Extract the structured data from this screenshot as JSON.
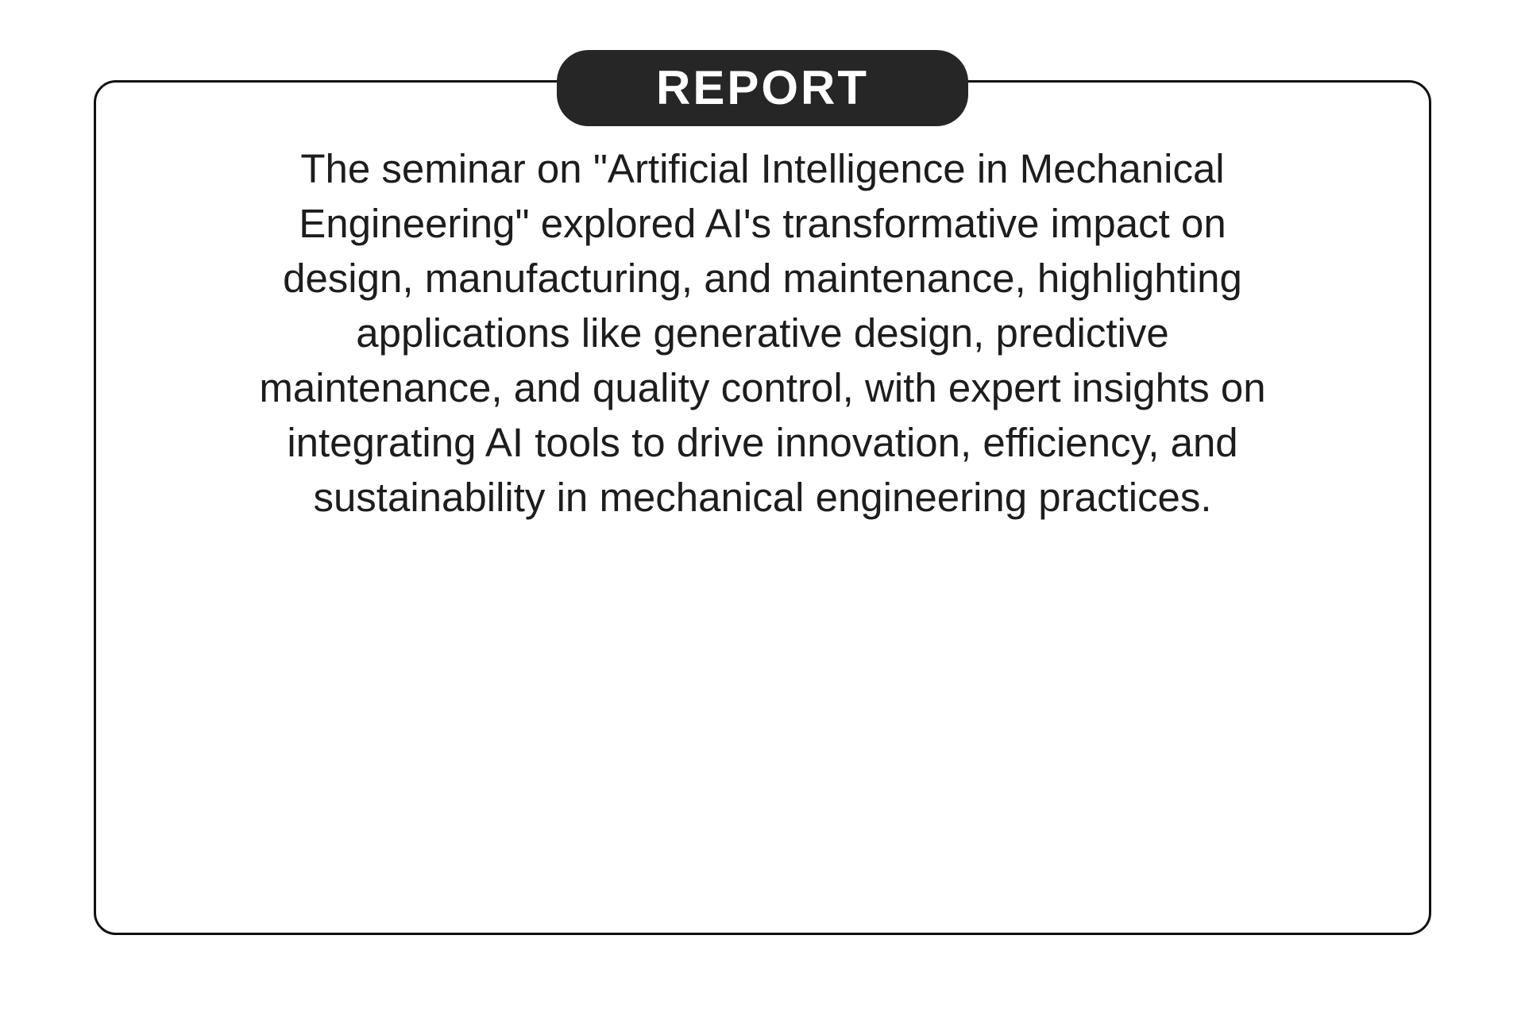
{
  "badge": {
    "label": "REPORT"
  },
  "report": {
    "lines": [
      "The seminar on \"Artificial Intelligence in Mechanical",
      "Engineering\" explored AI's transformative impact on",
      "design, manufacturing, and maintenance, highlighting",
      "applications like generative design, predictive",
      "maintenance, and quality control, with expert insights on",
      "integrating AI tools to drive innovation, efficiency, and",
      "sustainability in mechanical engineering practices."
    ],
    "full_text": "The seminar on \"Artificial Intelligence in Mechanical Engineering\" explored AI's transformative impact on design, manufacturing, and maintenance, highlighting applications like generative design, predictive maintenance, and quality control, with expert insights on integrating AI tools to drive innovation, efficiency, and sustainability in mechanical engineering practices."
  },
  "colors": {
    "page_bg": "#ffffff",
    "card_bg": "#ffffff",
    "card_border": "#111111",
    "badge_bg": "#262626",
    "badge_text": "#ffffff",
    "body_text": "#1d1d1d"
  }
}
